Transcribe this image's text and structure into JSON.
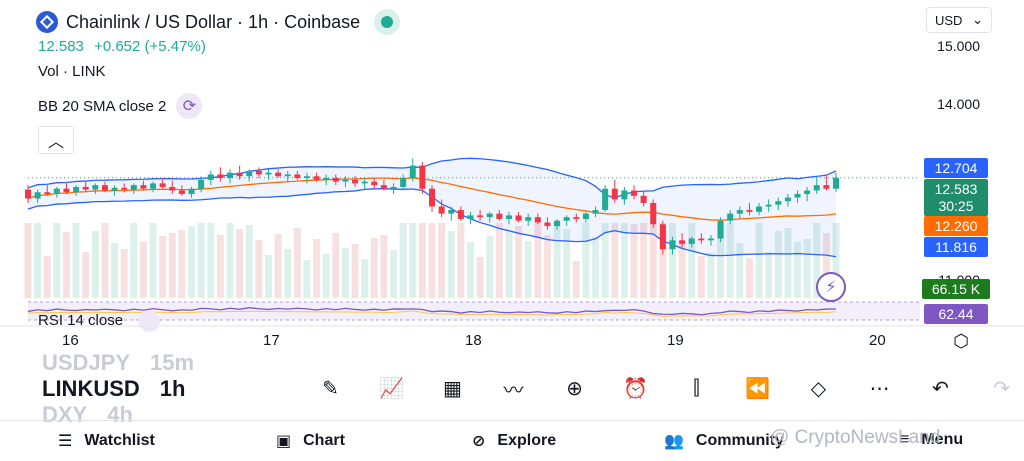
{
  "header": {
    "title": "Chainlink / US Dollar · 1h · Coinbase",
    "price": "12.583",
    "change": "+0.652 (+5.47%)",
    "volume_label": "Vol · LINK",
    "indicator_label": "BB 20 SMA close 2",
    "currency": "USD",
    "currency_chevron": "⌄",
    "collapse_glyph": "︿"
  },
  "price_axis": {
    "ticks": [
      "15.000",
      "14.000",
      "11.000"
    ],
    "tags": {
      "upper": "12.704",
      "current": "12.583",
      "countdown": "30:25",
      "middle": "12.260",
      "lower": "11.816",
      "rsi_k": "66.15 K",
      "rsi": "62.44"
    }
  },
  "rsi_label": "RSI 14 close",
  "time_axis": [
    "16",
    "17",
    "18",
    "19",
    "20"
  ],
  "symbols": [
    {
      "symbol": "USDJPY",
      "timeframe": "15m"
    },
    {
      "symbol": "LINKUSD",
      "timeframe": "1h"
    },
    {
      "symbol": "DXY",
      "timeframe": "4h"
    }
  ],
  "toolbar_icons": [
    "pencil-icon",
    "indicators-icon",
    "layout-icon",
    "compare-icon",
    "add-icon",
    "alert-icon",
    "candle-type-icon",
    "replay-icon",
    "layers-icon",
    "more-icon",
    "undo-icon",
    "redo-icon"
  ],
  "nav": {
    "watchlist": "Watchlist",
    "chart": "Chart",
    "explore": "Explore",
    "community": "Community",
    "menu": "Menu"
  },
  "watermark": "@ CryptoNewsLand",
  "colors": {
    "up": "#22ab94",
    "down": "#f23645",
    "bb_band": "#2962ff",
    "bb_basis": "#ff6d00",
    "rsi": "#7e57c2",
    "countdown_bg": "#1f8c6b",
    "rsi_k_bg": "#1d7a1d"
  },
  "chart_data": {
    "type": "candlestick",
    "price_ticks": [
      15.0,
      14.0,
      11.0
    ],
    "x_ticks": [
      "16",
      "17",
      "18",
      "19",
      "20"
    ],
    "ohlc": [
      [
        12.45,
        12.5,
        12.3,
        12.35
      ],
      [
        12.35,
        12.45,
        12.3,
        12.42
      ],
      [
        12.42,
        12.5,
        12.38,
        12.4
      ],
      [
        12.4,
        12.48,
        12.36,
        12.46
      ],
      [
        12.46,
        12.52,
        12.4,
        12.42
      ],
      [
        12.42,
        12.5,
        12.38,
        12.48
      ],
      [
        12.48,
        12.55,
        12.42,
        12.45
      ],
      [
        12.45,
        12.52,
        12.4,
        12.5
      ],
      [
        12.5,
        12.54,
        12.42,
        12.44
      ],
      [
        12.44,
        12.5,
        12.38,
        12.47
      ],
      [
        12.47,
        12.52,
        12.42,
        12.45
      ],
      [
        12.45,
        12.52,
        12.4,
        12.5
      ],
      [
        12.5,
        12.55,
        12.44,
        12.46
      ],
      [
        12.46,
        12.54,
        12.42,
        12.52
      ],
      [
        12.52,
        12.58,
        12.46,
        12.48
      ],
      [
        12.48,
        12.55,
        12.4,
        12.44
      ],
      [
        12.44,
        12.5,
        12.38,
        12.4
      ],
      [
        12.4,
        12.48,
        12.36,
        12.46
      ],
      [
        12.46,
        12.6,
        12.42,
        12.56
      ],
      [
        12.56,
        12.66,
        12.5,
        12.62
      ],
      [
        12.62,
        12.7,
        12.54,
        12.58
      ],
      [
        12.58,
        12.68,
        12.52,
        12.64
      ],
      [
        12.64,
        12.72,
        12.56,
        12.6
      ],
      [
        12.6,
        12.68,
        12.54,
        12.66
      ],
      [
        12.66,
        12.7,
        12.58,
        12.62
      ],
      [
        12.62,
        12.68,
        12.56,
        12.64
      ],
      [
        12.64,
        12.68,
        12.58,
        12.6
      ],
      [
        12.6,
        12.66,
        12.54,
        12.62
      ],
      [
        12.62,
        12.66,
        12.56,
        12.58
      ],
      [
        12.58,
        12.64,
        12.52,
        12.6
      ],
      [
        12.6,
        12.64,
        12.54,
        12.56
      ],
      [
        12.56,
        12.62,
        12.5,
        12.58
      ],
      [
        12.58,
        12.62,
        12.5,
        12.54
      ],
      [
        12.54,
        12.6,
        12.48,
        12.56
      ],
      [
        12.56,
        12.6,
        12.48,
        12.52
      ],
      [
        12.52,
        12.58,
        12.46,
        12.54
      ],
      [
        12.54,
        12.58,
        12.46,
        12.5
      ],
      [
        12.5,
        12.56,
        12.44,
        12.46
      ],
      [
        12.46,
        12.52,
        12.4,
        12.48
      ],
      [
        12.48,
        12.62,
        12.44,
        12.58
      ],
      [
        12.58,
        12.8,
        12.54,
        12.72
      ],
      [
        12.72,
        12.76,
        12.4,
        12.46
      ],
      [
        12.46,
        12.5,
        12.2,
        12.26
      ],
      [
        12.26,
        12.34,
        12.14,
        12.18
      ],
      [
        12.18,
        12.26,
        12.1,
        12.22
      ],
      [
        12.22,
        12.26,
        12.1,
        12.12
      ],
      [
        12.12,
        12.2,
        12.06,
        12.16
      ],
      [
        12.16,
        12.22,
        12.1,
        12.14
      ],
      [
        12.14,
        12.2,
        12.08,
        12.18
      ],
      [
        12.18,
        12.22,
        12.1,
        12.12
      ],
      [
        12.12,
        12.2,
        12.06,
        12.16
      ],
      [
        12.16,
        12.2,
        12.08,
        12.1
      ],
      [
        12.1,
        12.18,
        12.04,
        12.14
      ],
      [
        12.14,
        12.18,
        12.06,
        12.08
      ],
      [
        12.08,
        12.14,
        12.0,
        12.04
      ],
      [
        12.04,
        12.12,
        12.0,
        12.1
      ],
      [
        12.1,
        12.16,
        12.04,
        12.14
      ],
      [
        12.14,
        12.18,
        12.08,
        12.12
      ],
      [
        12.12,
        12.2,
        12.08,
        12.18
      ],
      [
        12.18,
        12.26,
        12.14,
        12.22
      ],
      [
        12.22,
        12.5,
        12.2,
        12.46
      ],
      [
        12.46,
        12.56,
        12.3,
        12.34
      ],
      [
        12.34,
        12.48,
        12.28,
        12.44
      ],
      [
        12.44,
        12.5,
        12.34,
        12.38
      ],
      [
        12.38,
        12.44,
        12.26,
        12.3
      ],
      [
        12.3,
        12.34,
        12.02,
        12.06
      ],
      [
        12.06,
        12.1,
        11.72,
        11.78
      ],
      [
        11.78,
        11.92,
        11.72,
        11.88
      ],
      [
        11.88,
        11.96,
        11.8,
        11.84
      ],
      [
        11.84,
        11.92,
        11.8,
        11.9
      ],
      [
        11.9,
        11.96,
        11.84,
        11.88
      ],
      [
        11.88,
        11.94,
        11.82,
        11.9
      ],
      [
        11.9,
        12.14,
        11.86,
        12.1
      ],
      [
        12.1,
        12.22,
        12.06,
        12.18
      ],
      [
        12.18,
        12.26,
        12.12,
        12.22
      ],
      [
        12.22,
        12.3,
        12.16,
        12.2
      ],
      [
        12.2,
        12.3,
        12.16,
        12.26
      ],
      [
        12.26,
        12.34,
        12.2,
        12.28
      ],
      [
        12.28,
        12.36,
        12.22,
        12.32
      ],
      [
        12.32,
        12.4,
        12.26,
        12.36
      ],
      [
        12.36,
        12.44,
        12.3,
        12.4
      ],
      [
        12.4,
        12.48,
        12.32,
        12.44
      ],
      [
        12.44,
        12.6,
        12.4,
        12.5
      ],
      [
        12.5,
        12.62,
        12.44,
        12.46
      ],
      [
        12.46,
        12.64,
        12.42,
        12.583
      ]
    ]
  }
}
